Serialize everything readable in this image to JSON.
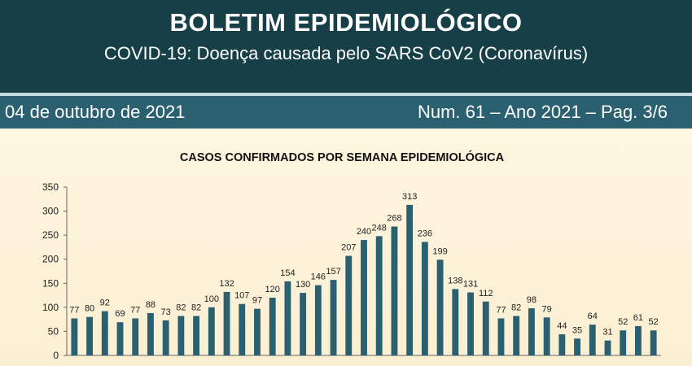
{
  "header": {
    "title": "BOLETIM EPIDEMIOLÓGICO",
    "subtitle": "COVID-19: Doença  causada pelo SARS CoV2 (Coronavírus)"
  },
  "infobar": {
    "date": "04 de outubro de 2021",
    "issue": "Num. 61 – Ano 2021 – Pag. 3/6"
  },
  "colors": {
    "header_bg": "#173f47",
    "infobar_bg": "#2a6070",
    "bar": "#2a6070",
    "panel_bg": "#fbf3dc"
  },
  "chart_data": {
    "type": "bar",
    "title": "CASOS CONFIRMADOS POR SEMANA EPIDEMIOLÓGICA",
    "xlabel": "",
    "ylabel": "",
    "ylim": [
      0,
      350
    ],
    "yticks": [
      0,
      50,
      100,
      150,
      200,
      250,
      300,
      350
    ],
    "values": [
      77,
      80,
      92,
      69,
      77,
      88,
      73,
      82,
      82,
      100,
      132,
      107,
      97,
      120,
      154,
      130,
      146,
      157,
      207,
      240,
      248,
      268,
      313,
      236,
      199,
      138,
      131,
      112,
      77,
      82,
      98,
      79,
      44,
      35,
      64,
      31,
      52,
      61,
      52
    ],
    "data_labels": true,
    "grid": false,
    "legend": "none"
  }
}
